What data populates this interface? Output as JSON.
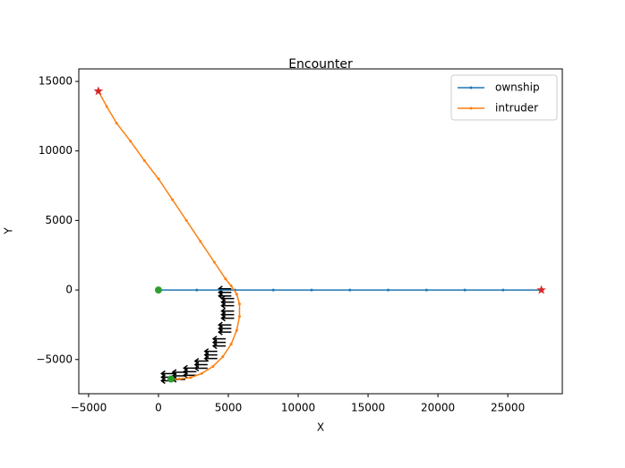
{
  "chart_data": {
    "type": "line",
    "title": "Encounter",
    "x_label": "X",
    "y_label": "Y",
    "series": [
      {
        "name": "ownship",
        "color": "#1f77b4",
        "x": [
          0,
          2740,
          5480,
          8220,
          10960,
          13700,
          16440,
          19180,
          21920,
          24660,
          27400
        ],
        "values": [
          0,
          0,
          0,
          0,
          0,
          0,
          0,
          0,
          0,
          0,
          0
        ]
      },
      {
        "name": "intruder",
        "color": "#ff7f0e",
        "x": [
          900,
          1500,
          2300,
          3100,
          3900,
          4600,
          5200,
          5600,
          5800,
          5800,
          5600,
          5200,
          4800,
          4000,
          3000,
          2000,
          1000,
          0,
          -1000,
          -2000,
          -3000,
          -3700,
          -4300
        ],
        "values": [
          -6400,
          -6400,
          -6300,
          -6000,
          -5500,
          -4800,
          -3900,
          -2900,
          -1900,
          -1000,
          -300,
          300,
          800,
          2000,
          3500,
          5000,
          6500,
          8000,
          9300,
          10700,
          12000,
          13200,
          14300
        ]
      }
    ],
    "start_color": "#2ca02c",
    "end_color": "#d62728",
    "xlim": [
      -5700,
      28900
    ],
    "ylim": [
      -7460,
      15900
    ],
    "xticks": [
      {
        "value": -5000,
        "label": "−5000"
      },
      0,
      5000,
      10000,
      15000,
      20000,
      25000
    ],
    "yticks": [
      {
        "value": -5000,
        "label": "−5000"
      },
      0,
      5000,
      10000,
      15000
    ],
    "legend": "upper right"
  }
}
